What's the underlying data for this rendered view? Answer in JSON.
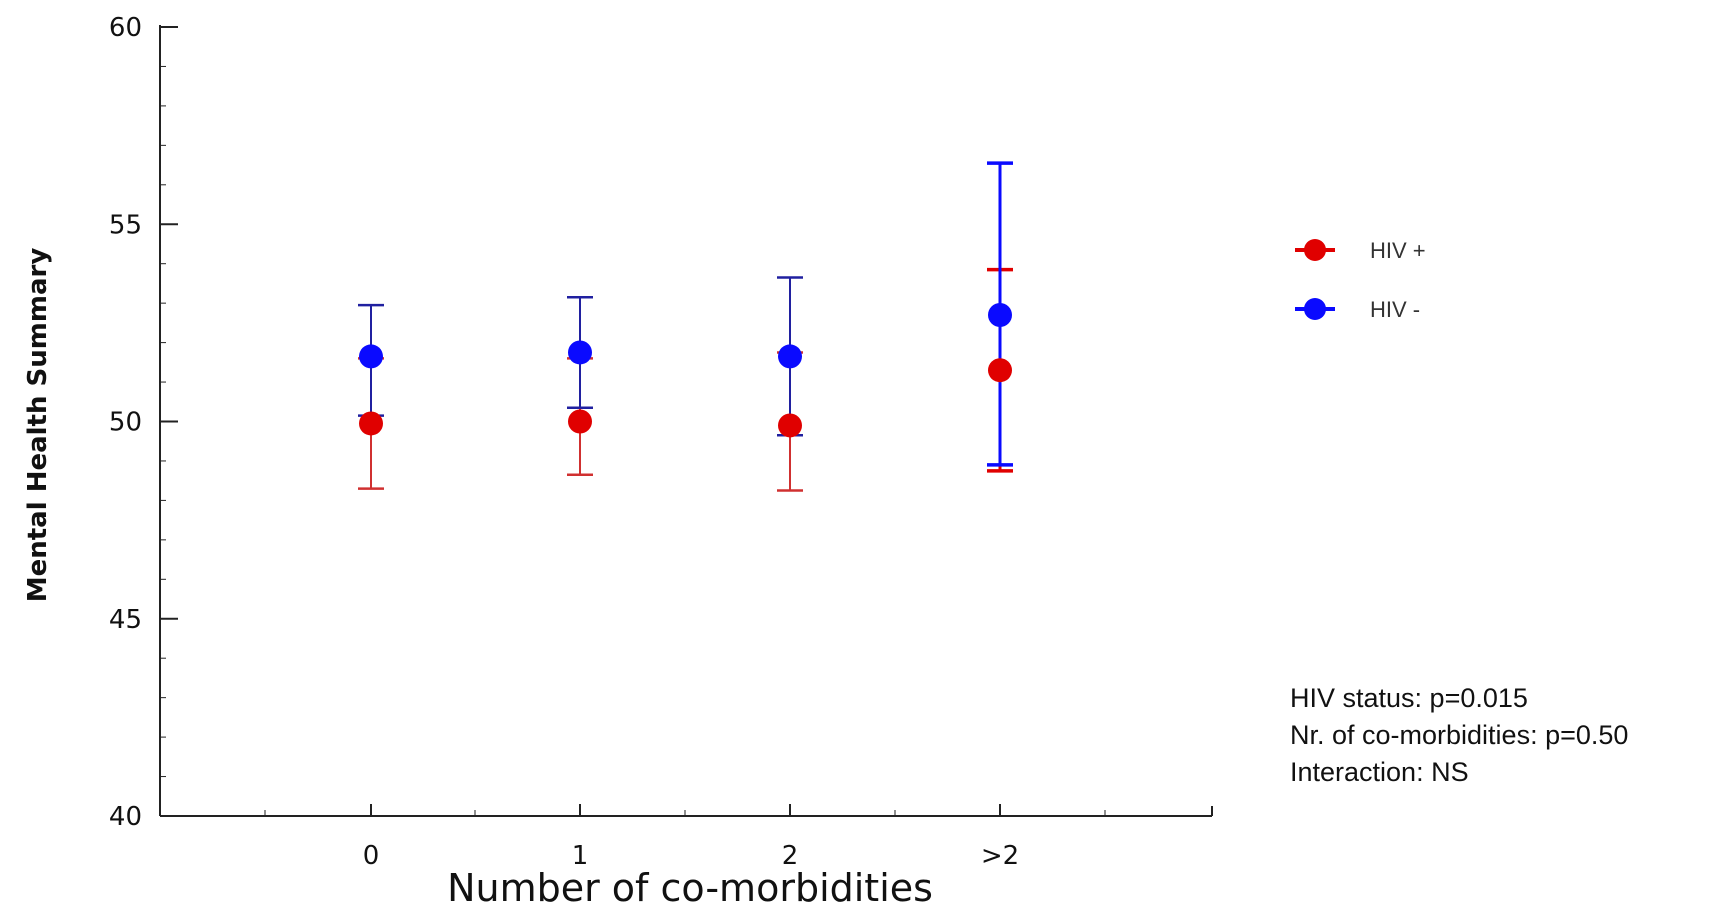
{
  "chart_data": {
    "type": "scatter",
    "xlabel": "Number of co-morbidities",
    "ylabel": "Mental Health Summary",
    "categories": [
      "0",
      "1",
      "2",
      ">2"
    ],
    "ylim": [
      40,
      60
    ],
    "yticks": [
      40,
      45,
      50,
      55,
      60
    ],
    "grid": false,
    "legend_position": "right",
    "series": [
      {
        "name": "HIV +",
        "color": "#e00000",
        "values": [
          49.95,
          50.0,
          49.9,
          51.3
        ],
        "lower": [
          48.3,
          48.65,
          48.25,
          48.75
        ],
        "upper": [
          51.6,
          51.6,
          51.75,
          53.85
        ]
      },
      {
        "name": "HIV -",
        "color": "#0a0aff",
        "values": [
          51.65,
          51.75,
          51.65,
          52.7
        ],
        "lower": [
          50.15,
          50.35,
          49.65,
          48.9
        ],
        "upper": [
          52.95,
          53.15,
          53.65,
          56.55
        ]
      }
    ],
    "annotations": [
      "HIV status: p=0.015",
      "Nr. of co-morbidities: p=0.50",
      "Interaction: NS"
    ]
  },
  "colors": {
    "axis": "#222222",
    "hiv_pos_whisker": "#d03030",
    "hiv_neg_whisker": "#2020a0"
  }
}
